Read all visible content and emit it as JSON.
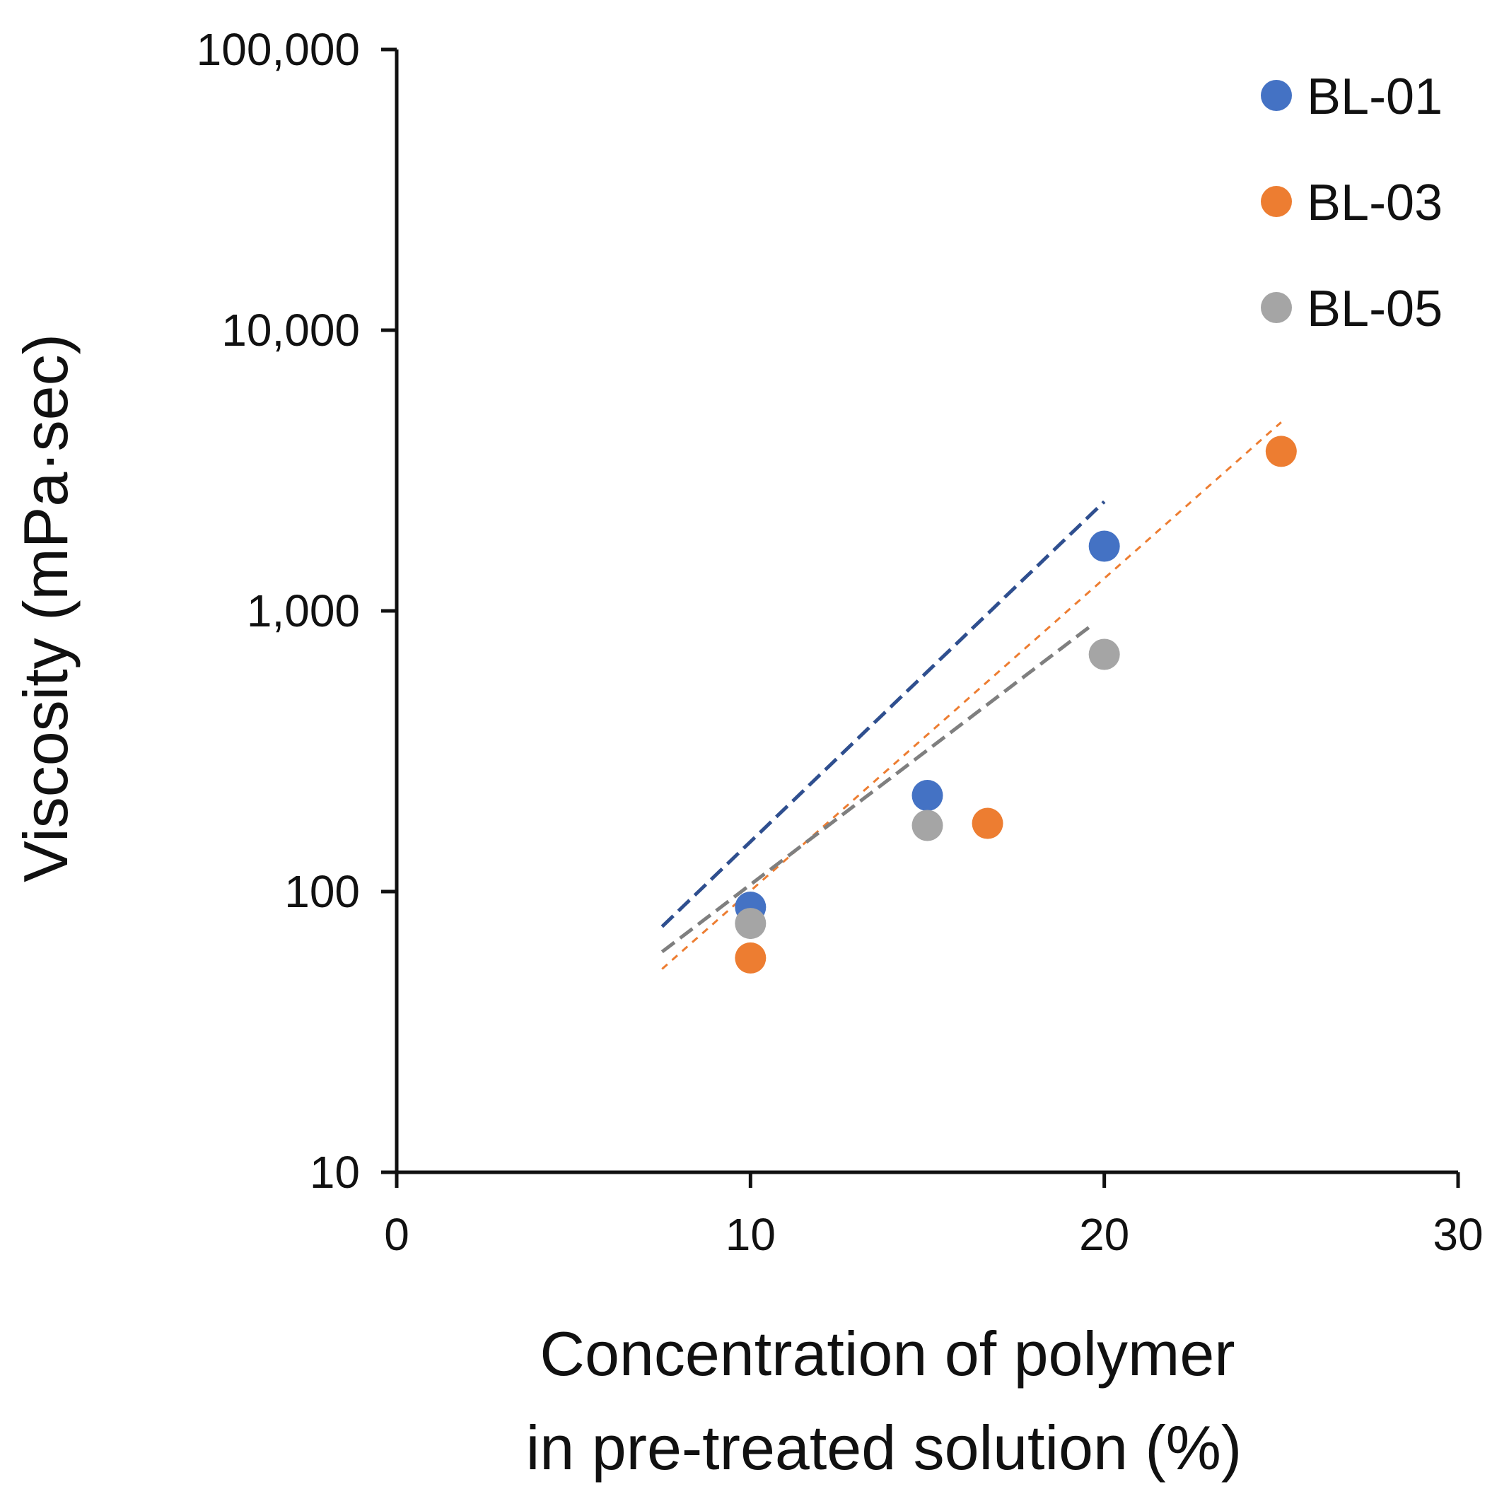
{
  "chart_data": {
    "type": "scatter",
    "title": "",
    "xlabel_lines": [
      "Concentration of polymer",
      "in pre-treated solution (%)"
    ],
    "ylabel": "Viscosity (mPa·sec)",
    "xlim": [
      0,
      30
    ],
    "ylim": [
      10,
      100000
    ],
    "yscale": "log",
    "x_ticks": [
      0,
      10,
      20,
      30
    ],
    "x_tick_labels": [
      "0",
      "10",
      "20",
      "30"
    ],
    "y_ticks": [
      10,
      100,
      1000,
      10000,
      100000
    ],
    "y_tick_labels": [
      "10",
      "100",
      "1,000",
      "10,000",
      "100,000"
    ],
    "grid": false,
    "legend_position": "top-right",
    "series": [
      {
        "name": "BL-01",
        "color": "#4472C4",
        "trend_color": "#2F4F8F",
        "x": [
          10,
          15,
          20
        ],
        "y": [
          88,
          220,
          1700
        ],
        "trendline": {
          "type": "exponential",
          "x": [
            7.5,
            20
          ],
          "y": [
            75,
            2450
          ]
        }
      },
      {
        "name": "BL-03",
        "color": "#ED7D31",
        "trend_color": "#ED7D31",
        "x": [
          10,
          16.7,
          25
        ],
        "y": [
          58,
          175,
          3700
        ],
        "trendline": {
          "type": "exponential",
          "x": [
            7.5,
            25
          ],
          "y": [
            53,
            4700
          ]
        }
      },
      {
        "name": "BL-05",
        "color": "#A5A5A5",
        "trend_color": "#7F7F7F",
        "x": [
          10,
          15,
          20
        ],
        "y": [
          77,
          172,
          700
        ],
        "trendline": {
          "type": "exponential",
          "x": [
            7.5,
            19.7
          ],
          "y": [
            61,
            900
          ]
        }
      }
    ]
  }
}
